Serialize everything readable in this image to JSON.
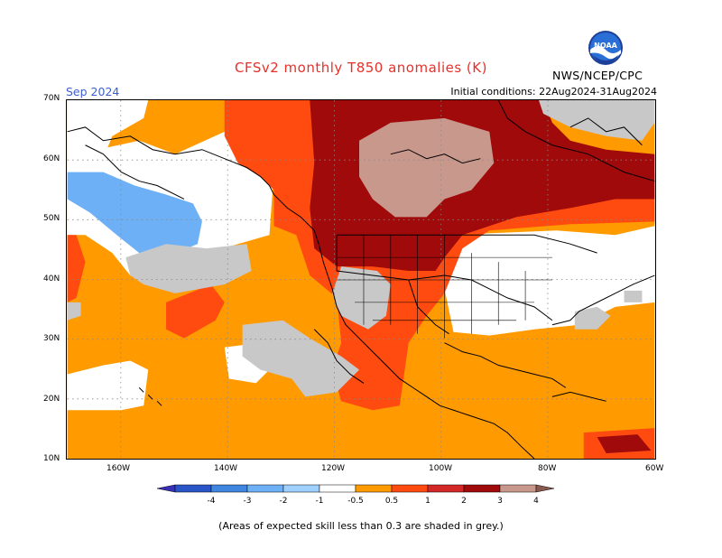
{
  "header": {
    "title": "CFSv2 monthly T850 anomalies (K)",
    "month": "Sep 2024",
    "initial_conditions": "Initial conditions: 22Aug2024-31Aug2024",
    "agency": "NWS/NCEP/CPC",
    "logo_text": "NOAA"
  },
  "map": {
    "latitude_labels": [
      "70N",
      "60N",
      "50N",
      "40N",
      "30N",
      "20N",
      "10N"
    ],
    "longitude_labels": [
      "160W",
      "140W",
      "120W",
      "100W",
      "80W",
      "60W"
    ],
    "lat_range": [
      10,
      70
    ],
    "lon_range": [
      -170,
      -60
    ]
  },
  "colorbar": {
    "tick_labels": [
      "-4",
      "-3",
      "-2",
      "-1",
      "-0.5",
      "0.5",
      "1",
      "2",
      "3",
      "4"
    ],
    "colors": [
      "#3a2fb8",
      "#2a55c8",
      "#3f86e0",
      "#6eb0f5",
      "#9fd0ff",
      "#ffffff",
      "#ff9a00",
      "#ff4a10",
      "#d22828",
      "#a00a0a",
      "#c8988c",
      "#8a5a50"
    ]
  },
  "legend_colors": {
    "grey_low_skill": "#c8c8c8",
    "orange": "#ff9a00",
    "red_orange": "#ff4a10",
    "dark_red": "#a00a0a",
    "pink_brown": "#c8988c",
    "light_blue": "#6eb0f5"
  },
  "footer": {
    "note": "(Areas of expected skill less than 0.3 are shaded in grey.)"
  }
}
